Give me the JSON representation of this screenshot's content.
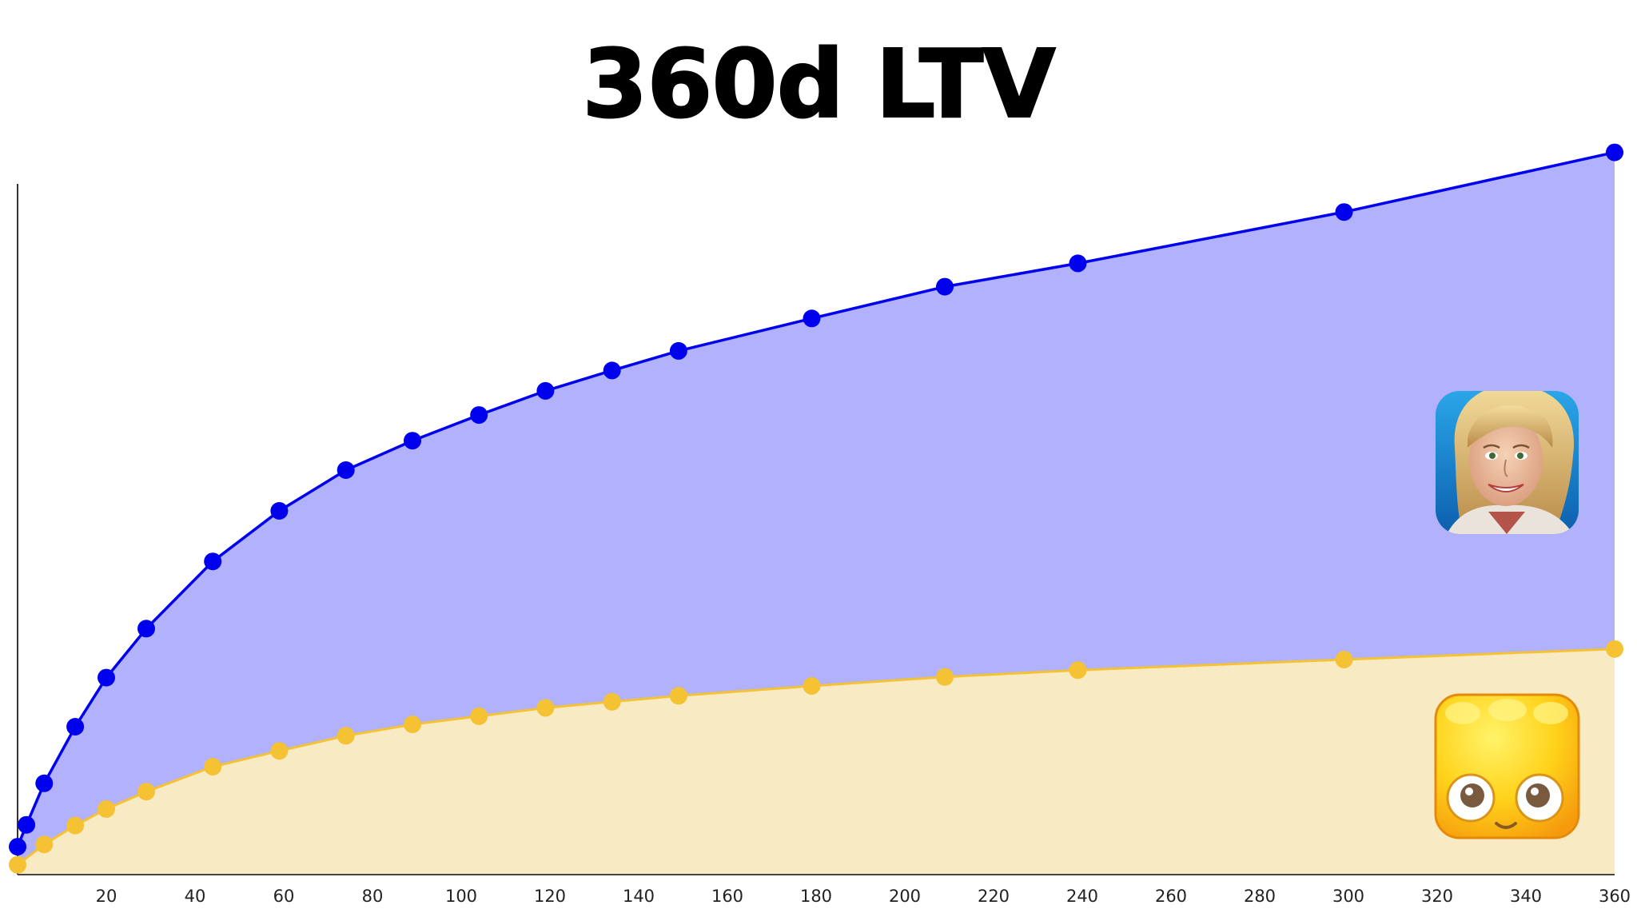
{
  "chart_data": {
    "type": "area",
    "title": "360d LTV",
    "xlabel": "",
    "ylabel": "",
    "x_tick_labels": [
      "20",
      "40",
      "60",
      "80",
      "100",
      "120",
      "140",
      "160",
      "180",
      "200",
      "220",
      "240",
      "260",
      "280",
      "300",
      "320",
      "340",
      "360"
    ],
    "x_ticks": [
      20,
      40,
      60,
      80,
      100,
      120,
      140,
      160,
      180,
      200,
      220,
      240,
      260,
      280,
      300,
      320,
      340,
      360
    ],
    "xlim": [
      0,
      360
    ],
    "ylim": [
      0,
      100
    ],
    "grid": false,
    "legend": "icons on right",
    "series": [
      {
        "icon": "woman-face-game-icon",
        "color": "#0000ee",
        "fill": "#b1b1fc",
        "x": [
          0,
          2,
          6,
          13,
          20,
          29,
          44,
          59,
          74,
          89,
          104,
          119,
          134,
          149,
          179,
          209,
          239,
          299,
          360
        ],
        "y": [
          3.7,
          6.6,
          12.1,
          19.6,
          26.1,
          32.6,
          41.5,
          48.2,
          53.6,
          57.5,
          60.9,
          64.1,
          66.8,
          69.4,
          73.7,
          77.9,
          81.0,
          87.8,
          95.7
        ]
      },
      {
        "icon": "yellow-jelly-game-icon",
        "color": "#f4c233",
        "fill": "#f8eac2",
        "x": [
          0,
          6,
          13,
          20,
          29,
          44,
          59,
          74,
          89,
          104,
          119,
          134,
          149,
          179,
          209,
          239,
          299,
          360
        ],
        "y": [
          1.3,
          4.0,
          6.5,
          8.7,
          11.0,
          14.3,
          16.4,
          18.4,
          19.9,
          21.0,
          22.1,
          22.9,
          23.7,
          25.0,
          26.2,
          27.1,
          28.5,
          29.9
        ]
      }
    ]
  }
}
